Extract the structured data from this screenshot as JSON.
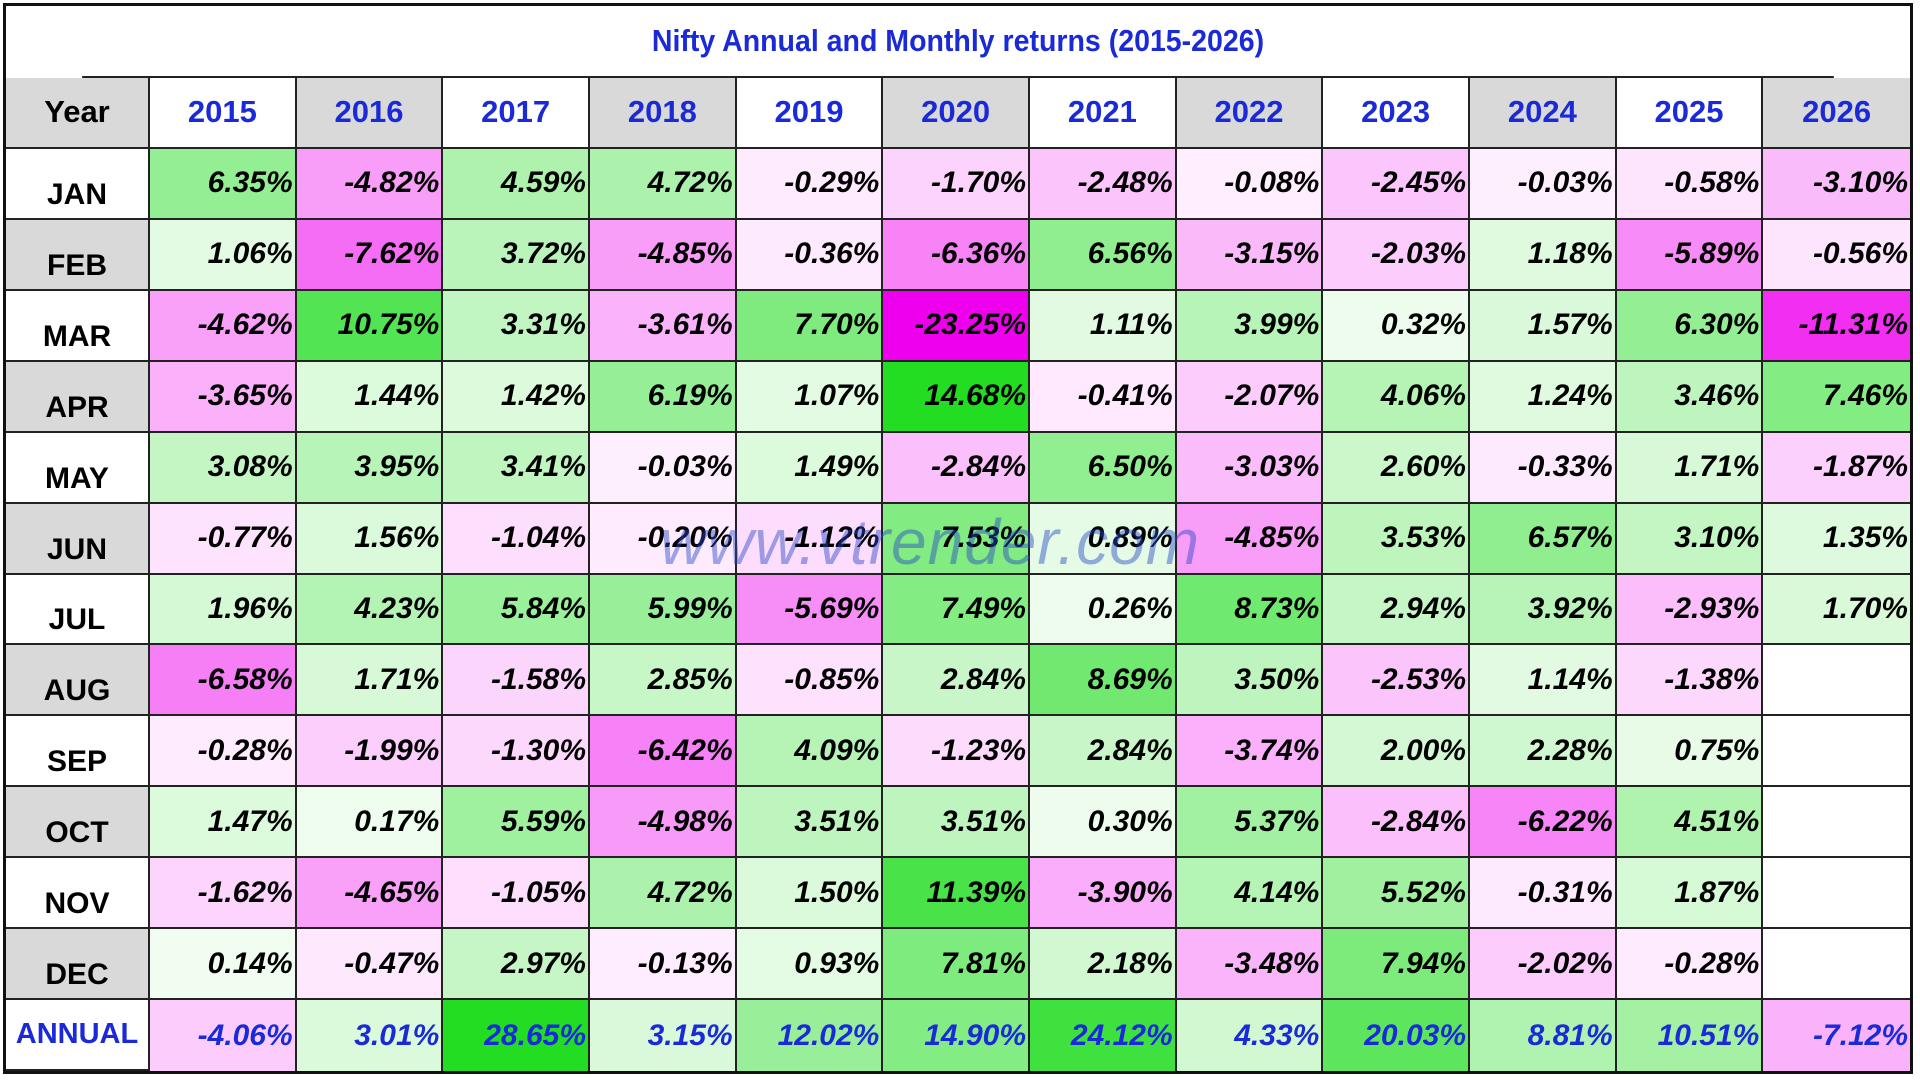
{
  "chart_data": {
    "type": "table",
    "title": "Nifty Annual and Monthly returns (2015-2026)",
    "corner_label": "Year",
    "years": [
      "2015",
      "2016",
      "2017",
      "2018",
      "2019",
      "2020",
      "2021",
      "2022",
      "2023",
      "2024",
      "2025",
      "2026"
    ],
    "rows": [
      {
        "label": "JAN",
        "values": [
          "6.35%",
          "-4.82%",
          "4.59%",
          "4.72%",
          "-0.29%",
          "-1.70%",
          "-2.48%",
          "-0.08%",
          "-2.45%",
          "-0.03%",
          "-0.58%",
          "-3.10%"
        ]
      },
      {
        "label": "FEB",
        "values": [
          "1.06%",
          "-7.62%",
          "3.72%",
          "-4.85%",
          "-0.36%",
          "-6.36%",
          "6.56%",
          "-3.15%",
          "-2.03%",
          "1.18%",
          "-5.89%",
          "-0.56%"
        ]
      },
      {
        "label": "MAR",
        "values": [
          "-4.62%",
          "10.75%",
          "3.31%",
          "-3.61%",
          "7.70%",
          "-23.25%",
          "1.11%",
          "3.99%",
          "0.32%",
          "1.57%",
          "6.30%",
          "-11.31%"
        ]
      },
      {
        "label": "APR",
        "values": [
          "-3.65%",
          "1.44%",
          "1.42%",
          "6.19%",
          "1.07%",
          "14.68%",
          "-0.41%",
          "-2.07%",
          "4.06%",
          "1.24%",
          "3.46%",
          "7.46%"
        ]
      },
      {
        "label": "MAY",
        "values": [
          "3.08%",
          "3.95%",
          "3.41%",
          "-0.03%",
          "1.49%",
          "-2.84%",
          "6.50%",
          "-3.03%",
          "2.60%",
          "-0.33%",
          "1.71%",
          "-1.87%"
        ]
      },
      {
        "label": "JUN",
        "values": [
          "-0.77%",
          "1.56%",
          "-1.04%",
          "-0.20%",
          "-1.12%",
          "7.53%",
          "0.89%",
          "-4.85%",
          "3.53%",
          "6.57%",
          "3.10%",
          "1.35%"
        ]
      },
      {
        "label": "JUL",
        "values": [
          "1.96%",
          "4.23%",
          "5.84%",
          "5.99%",
          "-5.69%",
          "7.49%",
          "0.26%",
          "8.73%",
          "2.94%",
          "3.92%",
          "-2.93%",
          "1.70%"
        ]
      },
      {
        "label": "AUG",
        "values": [
          "-6.58%",
          "1.71%",
          "-1.58%",
          "2.85%",
          "-0.85%",
          "2.84%",
          "8.69%",
          "3.50%",
          "-2.53%",
          "1.14%",
          "-1.38%",
          ""
        ]
      },
      {
        "label": "SEP",
        "values": [
          "-0.28%",
          "-1.99%",
          "-1.30%",
          "-6.42%",
          "4.09%",
          "-1.23%",
          "2.84%",
          "-3.74%",
          "2.00%",
          "2.28%",
          "0.75%",
          ""
        ]
      },
      {
        "label": "OCT",
        "values": [
          "1.47%",
          "0.17%",
          "5.59%",
          "-4.98%",
          "3.51%",
          "3.51%",
          "0.30%",
          "5.37%",
          "-2.84%",
          "-6.22%",
          "4.51%",
          ""
        ]
      },
      {
        "label": "NOV",
        "values": [
          "-1.62%",
          "-4.65%",
          "-1.05%",
          "4.72%",
          "1.50%",
          "11.39%",
          "-3.90%",
          "4.14%",
          "5.52%",
          "-0.31%",
          "1.87%",
          ""
        ]
      },
      {
        "label": "DEC",
        "values": [
          "0.14%",
          "-0.47%",
          "2.97%",
          "-0.13%",
          "0.93%",
          "7.81%",
          "2.18%",
          "-3.48%",
          "7.94%",
          "-2.02%",
          "-0.28%",
          ""
        ]
      }
    ],
    "annual": {
      "label": "ANNUAL",
      "values": [
        "-4.06%",
        "3.01%",
        "28.65%",
        "3.15%",
        "12.02%",
        "14.90%",
        "24.12%",
        "4.33%",
        "20.03%",
        "8.81%",
        "10.51%",
        "-7.12%"
      ]
    },
    "colors": {
      "positive_strong": "#22dd22",
      "negative_strong": "#ee00ee",
      "header_shade": "#d9d9d9",
      "header_text": "#1a2ad8",
      "annual_text": "#1a2ad8"
    }
  },
  "watermark": "www.vtrender.com"
}
